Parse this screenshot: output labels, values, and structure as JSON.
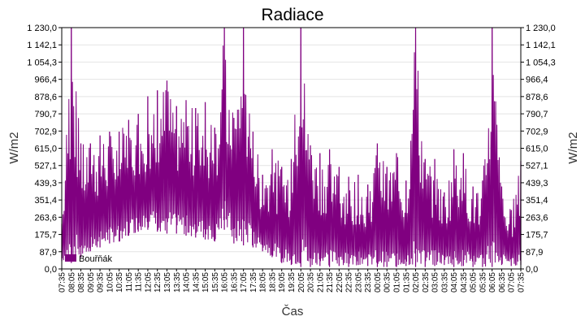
{
  "chart_data": {
    "type": "line",
    "title": "Radiace",
    "xlabel": "Čas",
    "ylabel_left": "W/m2",
    "ylabel_right": "W/m2",
    "ylim": [
      0,
      1230
    ],
    "y_ticks": [
      0,
      87.9,
      175.7,
      263.6,
      351.4,
      439.3,
      527.1,
      615.0,
      702.9,
      790.7,
      878.6,
      966.4,
      1054.3,
      1142.1,
      1230.0
    ],
    "y_tick_labels": [
      "0,0",
      "87,9",
      "175,7",
      "263,6",
      "351,4",
      "439,3",
      "527,1",
      "615,0",
      "702,9",
      "790,7",
      "878,6",
      "966,4",
      "1 054,3",
      "1 142,1",
      "1 230,0"
    ],
    "x_tick_labels": [
      "07:35",
      "08:05",
      "08:35",
      "09:05",
      "09:35",
      "10:05",
      "10:35",
      "11:05",
      "11:35",
      "12:05",
      "12:35",
      "13:05",
      "13:35",
      "14:05",
      "14:35",
      "15:05",
      "15:35",
      "16:05",
      "16:35",
      "17:05",
      "17:35",
      "18:05",
      "18:35",
      "19:05",
      "19:35",
      "20:05",
      "20:35",
      "21:05",
      "21:35",
      "22:05",
      "22:35",
      "23:05",
      "23:35",
      "00:05",
      "00:35",
      "01:05",
      "01:35",
      "02:05",
      "02:35",
      "03:05",
      "03:35",
      "04:05",
      "04:35",
      "05:05",
      "05:35",
      "06:05",
      "06:35",
      "07:05",
      "07:35"
    ],
    "grid": true,
    "series": [
      {
        "name": "Bouřňák",
        "color": "#800080",
        "x": [
          "07:35",
          "08:05",
          "08:35",
          "09:05",
          "09:35",
          "10:05",
          "10:35",
          "11:05",
          "11:35",
          "12:05",
          "12:35",
          "13:05",
          "13:35",
          "14:05",
          "14:35",
          "15:05",
          "15:35",
          "16:05",
          "16:35",
          "17:05",
          "17:35",
          "18:05",
          "18:35",
          "19:05",
          "19:35",
          "20:05",
          "20:35",
          "21:05",
          "21:35",
          "22:05",
          "22:35",
          "23:05",
          "23:35",
          "00:05",
          "00:35",
          "01:05",
          "01:35",
          "02:05",
          "02:35",
          "03:05",
          "03:35",
          "04:05",
          "04:35",
          "05:05",
          "05:35",
          "06:05",
          "06:35",
          "07:05",
          "07:35"
        ],
        "high": [
          230,
          1230,
          640,
          640,
          680,
          700,
          700,
          760,
          790,
          880,
          910,
          960,
          830,
          860,
          820,
          850,
          720,
          1230,
          770,
          1230,
          700,
          480,
          610,
          520,
          560,
          1230,
          630,
          590,
          610,
          520,
          470,
          480,
          430,
          640,
          520,
          590,
          450,
          1230,
          560,
          560,
          390,
          610,
          590,
          420,
          450,
          1230,
          420,
          300,
          550
        ],
        "low": [
          40,
          30,
          60,
          90,
          110,
          130,
          140,
          170,
          190,
          200,
          190,
          180,
          180,
          170,
          160,
          150,
          140,
          200,
          130,
          120,
          110,
          90,
          60,
          30,
          20,
          10,
          10,
          15,
          10,
          15,
          10,
          20,
          15,
          10,
          10,
          10,
          15,
          10,
          10,
          15,
          20,
          10,
          15,
          10,
          10,
          10,
          20,
          15,
          20
        ]
      }
    ]
  }
}
